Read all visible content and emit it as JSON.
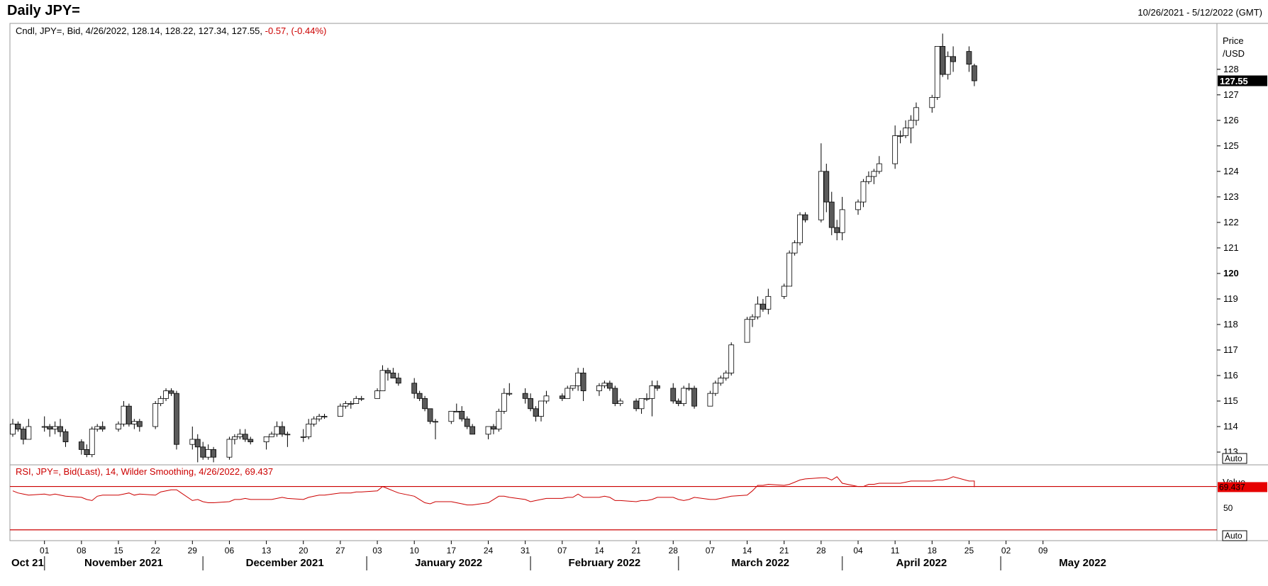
{
  "title": "Daily JPY=",
  "date_range": "10/26/2021 - 5/12/2022 (GMT)",
  "price_legend": {
    "text": "Cndl, JPY=, Bid, 4/26/2022, 128.14, 128.22, 127.34, 127.55,",
    "change": "-0.57, (-0.44%)"
  },
  "price_axis": {
    "label_line1": "Price",
    "label_line2": "/USD",
    "last_value": "127.55",
    "auto_label": "Auto"
  },
  "rsi_legend": "RSI, JPY=, Bid(Last),  14, Wilder Smoothing, 4/26/2022, 69.437",
  "rsi_axis": {
    "label": "Value",
    "tick_50": "50",
    "last_value": "69.437",
    "auto_label": "Auto"
  },
  "x_axis": {
    "day_ticks": [
      "01",
      "08",
      "15",
      "22",
      "29",
      "06",
      "13",
      "20",
      "27",
      "03",
      "10",
      "17",
      "24",
      "31",
      "07",
      "14",
      "21",
      "28",
      "07",
      "14",
      "21",
      "28",
      "04",
      "11",
      "18",
      "25",
      "02",
      "09"
    ],
    "months": [
      "Oct 21",
      "November 2021",
      "December 2021",
      "January 2022",
      "February 2022",
      "March 2022",
      "April 2022",
      "May 2022"
    ]
  },
  "colors": {
    "up_fill": "#ffffff",
    "down_fill": "#5a5a5a",
    "candle_outline": "#000000",
    "rsi_line": "#cc0000",
    "legend_change": "#cc0000",
    "last_price_bg": "#000000",
    "rsi_last_bg": "#e60000"
  },
  "chart_data": [
    {
      "type": "candlestick",
      "series_name": "JPY=",
      "x_start": "2021-10-26",
      "x_end": "2022-05-12",
      "ylim": [
        112.5,
        129.8
      ],
      "y_ticks": [
        113,
        114,
        115,
        116,
        117,
        118,
        119,
        120,
        121,
        122,
        123,
        124,
        125,
        126,
        127,
        128
      ],
      "ohlc": [
        [
          "2021-10-26",
          113.7,
          114.3,
          113.6,
          114.1
        ],
        [
          "2021-10-27",
          114.1,
          114.2,
          113.8,
          113.9
        ],
        [
          "2021-10-28",
          113.9,
          114.0,
          113.3,
          113.5
        ],
        [
          "2021-10-29",
          113.5,
          114.3,
          113.5,
          114.0
        ],
        [
          "2021-11-01",
          114.0,
          114.4,
          113.8,
          114.0
        ],
        [
          "2021-11-02",
          114.0,
          114.1,
          113.6,
          113.9
        ],
        [
          "2021-11-03",
          113.9,
          114.2,
          113.7,
          114.0
        ],
        [
          "2021-11-04",
          114.0,
          114.3,
          113.6,
          113.8
        ],
        [
          "2021-11-05",
          113.8,
          113.9,
          113.2,
          113.4
        ],
        [
          "2021-11-08",
          113.4,
          113.5,
          112.9,
          113.1
        ],
        [
          "2021-11-09",
          113.1,
          113.3,
          112.8,
          112.9
        ],
        [
          "2021-11-10",
          112.9,
          114.0,
          112.8,
          113.9
        ],
        [
          "2021-11-11",
          113.9,
          114.1,
          113.8,
          114.0
        ],
        [
          "2021-11-12",
          114.0,
          114.2,
          113.8,
          113.9
        ],
        [
          "2021-11-15",
          113.9,
          114.2,
          113.8,
          114.1
        ],
        [
          "2021-11-16",
          114.1,
          115.0,
          114.0,
          114.8
        ],
        [
          "2021-11-17",
          114.8,
          114.9,
          114.0,
          114.1
        ],
        [
          "2021-11-18",
          114.1,
          114.3,
          113.9,
          114.2
        ],
        [
          "2021-11-19",
          114.2,
          114.3,
          113.8,
          114.0
        ],
        [
          "2021-11-22",
          114.0,
          115.0,
          113.9,
          114.9
        ],
        [
          "2021-11-23",
          114.9,
          115.2,
          114.8,
          115.1
        ],
        [
          "2021-11-24",
          115.1,
          115.5,
          115.0,
          115.4
        ],
        [
          "2021-11-25",
          115.4,
          115.5,
          115.2,
          115.3
        ],
        [
          "2021-11-26",
          115.3,
          115.4,
          113.1,
          113.3
        ],
        [
          "2021-11-29",
          113.3,
          114.0,
          113.1,
          113.5
        ],
        [
          "2021-11-30",
          113.5,
          113.7,
          112.6,
          113.2
        ],
        [
          "2021-12-01",
          113.2,
          113.4,
          112.7,
          112.8
        ],
        [
          "2021-12-02",
          112.8,
          113.3,
          112.7,
          113.1
        ],
        [
          "2021-12-03",
          113.1,
          113.2,
          112.6,
          112.8
        ],
        [
          "2021-12-06",
          112.8,
          113.6,
          112.7,
          113.5
        ],
        [
          "2021-12-07",
          113.5,
          113.7,
          113.3,
          113.6
        ],
        [
          "2021-12-08",
          113.6,
          113.9,
          113.5,
          113.7
        ],
        [
          "2021-12-09",
          113.7,
          113.9,
          113.4,
          113.5
        ],
        [
          "2021-12-10",
          113.5,
          113.6,
          113.3,
          113.4
        ],
        [
          "2021-12-13",
          113.4,
          113.6,
          113.1,
          113.6
        ],
        [
          "2021-12-14",
          113.6,
          113.8,
          113.6,
          113.7
        ],
        [
          "2021-12-15",
          113.7,
          114.2,
          113.6,
          114.0
        ],
        [
          "2021-12-16",
          114.0,
          114.2,
          113.6,
          113.7
        ],
        [
          "2021-12-17",
          113.7,
          113.8,
          113.2,
          113.7
        ],
        [
          "2021-12-20",
          113.6,
          113.9,
          113.4,
          113.6
        ],
        [
          "2021-12-21",
          113.6,
          114.3,
          113.5,
          114.1
        ],
        [
          "2021-12-22",
          114.1,
          114.4,
          114.0,
          114.3
        ],
        [
          "2021-12-23",
          114.3,
          114.5,
          114.2,
          114.4
        ],
        [
          "2021-12-24",
          114.4,
          114.5,
          114.3,
          114.4
        ],
        [
          "2021-12-27",
          114.4,
          114.9,
          114.4,
          114.8
        ],
        [
          "2021-12-28",
          114.8,
          115.0,
          114.7,
          114.9
        ],
        [
          "2021-12-29",
          114.9,
          115.0,
          114.7,
          114.9
        ],
        [
          "2021-12-30",
          114.9,
          115.2,
          114.9,
          115.1
        ],
        [
          "2021-12-31",
          115.1,
          115.2,
          115.0,
          115.1
        ],
        [
          "2022-01-03",
          115.1,
          115.5,
          115.1,
          115.4
        ],
        [
          "2022-01-04",
          115.4,
          116.4,
          115.4,
          116.2
        ],
        [
          "2022-01-05",
          116.2,
          116.3,
          115.8,
          116.1
        ],
        [
          "2022-01-06",
          116.1,
          116.3,
          115.9,
          115.9
        ],
        [
          "2022-01-07",
          115.9,
          116.1,
          115.6,
          115.7
        ],
        [
          "2022-01-10",
          115.7,
          115.9,
          115.1,
          115.3
        ],
        [
          "2022-01-11",
          115.3,
          115.4,
          115.0,
          115.1
        ],
        [
          "2022-01-12",
          115.1,
          115.2,
          114.6,
          114.7
        ],
        [
          "2022-01-13",
          114.7,
          114.7,
          114.1,
          114.2
        ],
        [
          "2022-01-14",
          114.2,
          114.3,
          113.5,
          114.2
        ],
        [
          "2022-01-17",
          114.2,
          114.6,
          114.1,
          114.6
        ],
        [
          "2022-01-18",
          114.6,
          114.9,
          114.6,
          114.6
        ],
        [
          "2022-01-19",
          114.6,
          114.8,
          114.2,
          114.3
        ],
        [
          "2022-01-20",
          114.3,
          114.4,
          113.9,
          114.0
        ],
        [
          "2022-01-21",
          114.0,
          114.1,
          113.7,
          113.7
        ],
        [
          "2022-01-24",
          113.7,
          114.0,
          113.5,
          114.0
        ],
        [
          "2022-01-25",
          114.0,
          114.1,
          113.7,
          113.9
        ],
        [
          "2022-01-26",
          113.9,
          114.7,
          113.8,
          114.6
        ],
        [
          "2022-01-27",
          114.6,
          115.5,
          114.5,
          115.3
        ],
        [
          "2022-01-28",
          115.3,
          115.7,
          115.2,
          115.3
        ],
        [
          "2022-01-31",
          115.3,
          115.5,
          114.9,
          115.1
        ],
        [
          "2022-02-01",
          115.1,
          115.3,
          114.6,
          114.7
        ],
        [
          "2022-02-02",
          114.7,
          114.8,
          114.2,
          114.4
        ],
        [
          "2022-02-03",
          114.4,
          115.0,
          114.2,
          115.0
        ],
        [
          "2022-02-04",
          115.0,
          115.4,
          114.9,
          115.2
        ],
        [
          "2022-02-07",
          115.2,
          115.3,
          115.0,
          115.1
        ],
        [
          "2022-02-08",
          115.1,
          115.6,
          115.1,
          115.5
        ],
        [
          "2022-02-09",
          115.5,
          115.6,
          115.4,
          115.6
        ],
        [
          "2022-02-10",
          115.6,
          116.3,
          115.4,
          116.1
        ],
        [
          "2022-02-11",
          116.1,
          116.3,
          115.0,
          115.4
        ],
        [
          "2022-02-14",
          115.4,
          115.7,
          115.2,
          115.6
        ],
        [
          "2022-02-15",
          115.6,
          115.8,
          115.5,
          115.7
        ],
        [
          "2022-02-16",
          115.7,
          115.8,
          115.4,
          115.5
        ],
        [
          "2022-02-17",
          115.5,
          115.6,
          114.8,
          114.9
        ],
        [
          "2022-02-18",
          114.9,
          115.1,
          114.8,
          115.0
        ],
        [
          "2022-02-21",
          115.0,
          115.1,
          114.6,
          114.7
        ],
        [
          "2022-02-22",
          114.7,
          115.1,
          114.5,
          115.1
        ],
        [
          "2022-02-23",
          115.1,
          115.3,
          115.0,
          115.1
        ],
        [
          "2022-02-24",
          115.1,
          115.8,
          114.4,
          115.6
        ],
        [
          "2022-02-25",
          115.6,
          115.8,
          115.4,
          115.5
        ],
        [
          "2022-02-28",
          115.5,
          115.7,
          114.9,
          115.0
        ],
        [
          "2022-03-01",
          115.0,
          115.1,
          114.8,
          114.9
        ],
        [
          "2022-03-02",
          114.9,
          115.6,
          114.8,
          115.5
        ],
        [
          "2022-03-03",
          115.5,
          115.7,
          115.4,
          115.5
        ],
        [
          "2022-03-04",
          115.5,
          115.6,
          114.7,
          114.8
        ],
        [
          "2022-03-07",
          114.8,
          115.4,
          114.8,
          115.3
        ],
        [
          "2022-03-08",
          115.3,
          115.8,
          115.2,
          115.7
        ],
        [
          "2022-03-09",
          115.7,
          116.0,
          115.6,
          115.9
        ],
        [
          "2022-03-10",
          115.9,
          116.2,
          115.8,
          116.1
        ],
        [
          "2022-03-11",
          116.1,
          117.3,
          116.0,
          117.2
        ],
        [
          "2022-03-14",
          117.3,
          118.3,
          117.3,
          118.2
        ],
        [
          "2022-03-15",
          118.2,
          118.4,
          117.9,
          118.3
        ],
        [
          "2022-03-16",
          118.3,
          119.1,
          118.2,
          118.8
        ],
        [
          "2022-03-17",
          118.8,
          119.0,
          118.5,
          118.6
        ],
        [
          "2022-03-18",
          118.6,
          119.4,
          118.4,
          119.1
        ],
        [
          "2022-03-21",
          119.1,
          119.6,
          119.0,
          119.5
        ],
        [
          "2022-03-22",
          119.5,
          120.9,
          119.5,
          120.8
        ],
        [
          "2022-03-23",
          120.8,
          121.3,
          120.7,
          121.2
        ],
        [
          "2022-03-24",
          121.2,
          122.4,
          121.1,
          122.3
        ],
        [
          "2022-03-25",
          122.3,
          122.4,
          122.0,
          122.1
        ],
        [
          "2022-03-28",
          122.1,
          125.1,
          122.0,
          124.0
        ],
        [
          "2022-03-29",
          124.0,
          124.3,
          122.4,
          122.8
        ],
        [
          "2022-03-30",
          122.8,
          123.2,
          121.5,
          121.8
        ],
        [
          "2022-03-31",
          121.8,
          122.1,
          121.3,
          121.6
        ],
        [
          "2022-04-01",
          121.6,
          123.0,
          121.3,
          122.5
        ],
        [
          "2022-04-04",
          122.5,
          122.9,
          122.3,
          122.8
        ],
        [
          "2022-04-05",
          122.8,
          123.7,
          122.6,
          123.6
        ],
        [
          "2022-04-06",
          123.6,
          124.0,
          123.5,
          123.8
        ],
        [
          "2022-04-07",
          123.8,
          124.1,
          123.5,
          124.0
        ],
        [
          "2022-04-08",
          124.0,
          124.6,
          123.9,
          124.3
        ],
        [
          "2022-04-11",
          124.3,
          125.8,
          124.1,
          125.4
        ],
        [
          "2022-04-12",
          125.4,
          125.6,
          125.1,
          125.4
        ],
        [
          "2022-04-13",
          125.4,
          126.0,
          125.3,
          125.7
        ],
        [
          "2022-04-14",
          125.7,
          126.2,
          125.1,
          126.0
        ],
        [
          "2022-04-15",
          126.0,
          126.7,
          125.8,
          126.5
        ],
        [
          "2022-04-18",
          126.5,
          127.0,
          126.3,
          126.9
        ],
        [
          "2022-04-19",
          126.9,
          128.9,
          126.8,
          128.9
        ],
        [
          "2022-04-20",
          128.9,
          129.4,
          127.7,
          127.8
        ],
        [
          "2022-04-21",
          127.8,
          128.7,
          127.6,
          128.5
        ],
        [
          "2022-04-22",
          128.5,
          128.9,
          127.9,
          128.3
        ],
        [
          "2022-04-25",
          128.7,
          128.9,
          127.9,
          128.2
        ],
        [
          "2022-04-26",
          128.14,
          128.22,
          127.34,
          127.55
        ]
      ]
    },
    {
      "type": "line",
      "series_name": "RSI",
      "ylim": [
        20,
        90
      ],
      "reference_lines": [
        70,
        30
      ],
      "values": [
        66,
        64,
        63,
        62,
        63,
        62,
        63,
        62,
        61,
        60,
        58,
        57,
        61,
        62,
        62,
        63,
        64,
        62,
        63,
        62,
        65,
        66,
        67,
        67,
        57,
        58,
        56,
        55,
        55,
        56,
        58,
        58,
        59,
        58,
        58,
        58,
        59,
        60,
        59,
        58,
        60,
        61,
        62,
        62,
        64,
        64,
        64,
        65,
        65,
        66,
        70,
        68,
        66,
        64,
        61,
        58,
        55,
        54,
        56,
        56,
        55,
        54,
        53,
        53,
        55,
        58,
        61,
        61,
        60,
        58,
        56,
        57,
        58,
        59,
        59,
        60,
        60,
        63,
        60,
        60,
        61,
        60,
        57,
        57,
        56,
        57,
        57,
        58,
        60,
        60,
        58,
        57,
        58,
        60,
        58,
        58,
        59,
        60,
        61,
        62,
        66,
        71,
        71,
        72,
        71,
        72,
        74,
        76,
        77,
        78,
        78,
        76,
        79,
        73,
        70,
        70,
        72,
        72,
        73,
        73,
        73,
        74,
        75,
        75,
        75,
        76,
        76,
        77,
        79,
        75,
        75,
        74,
        72,
        69.437
      ]
    }
  ]
}
